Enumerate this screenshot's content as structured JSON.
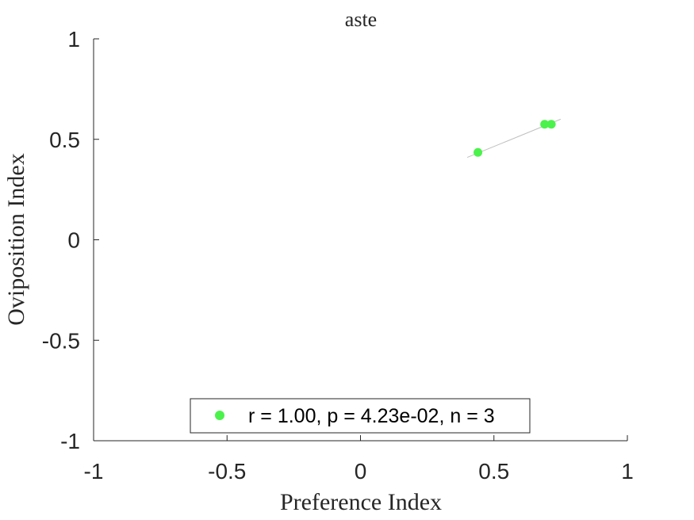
{
  "chart_data": {
    "type": "scatter",
    "title": "aste",
    "xlabel": "Preference Index",
    "ylabel": "Oviposition Index",
    "xlim": [
      -1,
      1
    ],
    "ylim": [
      -1,
      1
    ],
    "xticks": [
      -1,
      -0.5,
      0,
      0.5,
      1
    ],
    "yticks": [
      -1,
      -0.5,
      0,
      0.5,
      1
    ],
    "xtick_labels": [
      "-1",
      "-0.5",
      "0",
      "0.5",
      "1"
    ],
    "ytick_labels": [
      "-1",
      "-0.5",
      "0",
      "0.5",
      "1"
    ],
    "grid": false,
    "legend_position": "bottom",
    "series": [
      {
        "name": "r = 1.00, p = 4.23e-02, n = 3",
        "color": "#4cf24c",
        "points": [
          {
            "x": 0.44,
            "y": 0.435
          },
          {
            "x": 0.69,
            "y": 0.575
          },
          {
            "x": 0.715,
            "y": 0.575
          }
        ]
      }
    ],
    "fit_line": {
      "color": "#bfbfbf",
      "x": [
        0.4,
        0.75
      ],
      "y": [
        0.41,
        0.6
      ]
    }
  }
}
